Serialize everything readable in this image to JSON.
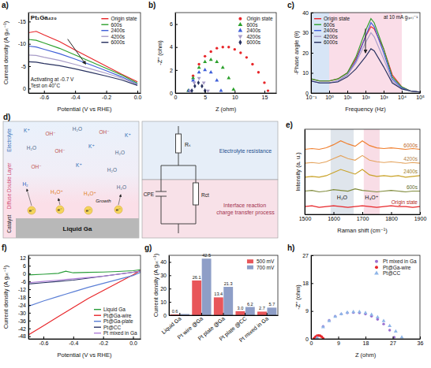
{
  "chart_data": [
    {
      "panel": "a)",
      "type": "line",
      "x_label": "Potential (V vs RHE)",
      "y_label": "Current density (A gₚₜ⁻¹)",
      "annotations": [
        "Pt₁Ga₄₂₀",
        "Activating at -0.7 V",
        "Test on 40°C"
      ],
      "x": [
        -0.7,
        -0.65,
        -0.6,
        -0.5,
        -0.4,
        -0.3,
        -0.2,
        -0.1,
        0
      ],
      "xlim": [
        -0.7,
        0.02
      ],
      "xticks": [
        -0.6,
        -0.4,
        -0.2,
        {
          "value": 0,
          "label": "0.0"
        }
      ],
      "ylim": [
        1,
        -17
      ],
      "yticks": [
        0,
        -5,
        -10,
        -15
      ],
      "legend": "upper right",
      "series": [
        {
          "name": "Origin state",
          "color": "#e8262a",
          "values": [
            -12.5,
            -12.8,
            -12,
            -10.5,
            -8.6,
            -6.8,
            -5,
            -3.2,
            -1.5
          ]
        },
        {
          "name": "600s",
          "color": "#2ca02c",
          "values": [
            -11,
            -10.8,
            -10.2,
            -9,
            -7.5,
            -6,
            -4.5,
            -3,
            -1.2
          ]
        },
        {
          "name": "2400s",
          "color": "#3f5fd8",
          "values": [
            -9.5,
            -9.3,
            -8.8,
            -7.8,
            -6.6,
            -5.3,
            -4,
            -2.6,
            -1
          ]
        },
        {
          "name": "4200s",
          "color": "#a89cc8",
          "values": [
            -7.5,
            -7.4,
            -7,
            -6.3,
            -5.4,
            -4.4,
            -3.4,
            -2.3,
            -0.9
          ]
        },
        {
          "name": "6000s",
          "color": "#27305f",
          "values": [
            -6,
            -5.9,
            -5.6,
            -5.1,
            -4.4,
            -3.6,
            -2.8,
            -1.9,
            -0.7
          ]
        }
      ]
    },
    {
      "panel": "b)",
      "type": "scatter",
      "x_label": "Z (ohm)",
      "y_label": "-Z'' (ohm)",
      "xlim": [
        0,
        17
      ],
      "xticks": [
        0,
        5,
        10,
        15
      ],
      "ylim": [
        0,
        7
      ],
      "yticks": [
        0,
        2,
        4,
        6
      ],
      "legend": "upper right",
      "series": [
        {
          "name": "Origin state",
          "color": "#e8262a",
          "marker": "circle",
          "x": [
            2.2,
            3,
            4,
            5,
            6,
            7,
            8,
            9,
            10,
            11,
            12,
            13,
            14,
            15,
            15.6
          ],
          "values": [
            0.2,
            1.5,
            2.5,
            3.2,
            3.6,
            3.9,
            4.0,
            4.0,
            3.8,
            3.5,
            3.1,
            2.5,
            1.8,
            0.9,
            0.2
          ]
        },
        {
          "name": "600s",
          "color": "#2ca02c",
          "marker": "triangle",
          "x": [
            2.2,
            3,
            4,
            5,
            6,
            7,
            8,
            9,
            9.8
          ],
          "values": [
            0.2,
            1.3,
            2.2,
            2.7,
            2.9,
            2.7,
            2.2,
            1.3,
            0.3
          ]
        },
        {
          "name": "2400s",
          "color": "#3f5fd8",
          "marker": "triangle",
          "x": [
            2.3,
            3,
            4,
            5,
            6,
            7,
            7.7
          ],
          "values": [
            0.2,
            1.1,
            1.8,
            2.0,
            1.8,
            1.1,
            0.2
          ]
        },
        {
          "name": "4200s",
          "color": "#a89cc8",
          "marker": "triangle-down",
          "x": [
            2.5,
            3.2,
            4,
            4.8,
            5.5
          ],
          "values": [
            0.2,
            0.9,
            1.3,
            0.9,
            0.2
          ]
        },
        {
          "name": "6000s",
          "color": "#27305f",
          "marker": "diamond",
          "x": [
            2.8,
            3.3,
            3.9,
            4.5,
            5.0
          ],
          "values": [
            0.2,
            0.6,
            0.9,
            0.6,
            0.2
          ]
        }
      ]
    },
    {
      "panel": "c)",
      "type": "line",
      "log": "x",
      "x_label": "Frequency (Hz)",
      "y_label": "-Phase angle (θ)",
      "annotations": [
        "at 10 mA g₍ₚₜ₎⁻¹"
      ],
      "x": [
        0.1,
        0.3,
        1,
        3,
        10,
        30,
        100,
        200,
        300,
        1000,
        3000,
        10000,
        30000,
        100000
      ],
      "xlim": [
        0.1,
        100000
      ],
      "xticks": [
        {
          "value": 0.1,
          "label": "10⁻¹"
        },
        {
          "value": 1,
          "label": "10⁰"
        },
        {
          "value": 10,
          "label": "10¹"
        },
        {
          "value": 100,
          "label": "10²"
        },
        {
          "value": 1000,
          "label": "10³"
        },
        {
          "value": 10000,
          "label": "10⁴"
        },
        {
          "value": 100000,
          "label": "10⁵"
        }
      ],
      "ylim": [
        0,
        40
      ],
      "yticks": [
        0,
        10,
        20,
        30,
        40
      ],
      "regions": [
        {
          "x0": 0.1,
          "x1": 1,
          "color": "#d7e5f6"
        },
        {
          "x0": 1,
          "x1": 10000,
          "color": "#fadde8"
        }
      ],
      "legend": "upper left",
      "series": [
        {
          "name": "Origin state",
          "color": "#e8262a",
          "values": [
            7,
            6,
            6,
            7,
            10,
            17,
            28,
            33,
            32,
            22,
            9,
            3,
            1,
            0.5
          ]
        },
        {
          "name": "600s",
          "color": "#2ca02c",
          "values": [
            7,
            6,
            6,
            7,
            10,
            18,
            31,
            37,
            35,
            22,
            8,
            3,
            1,
            0.5
          ]
        },
        {
          "name": "2400s",
          "color": "#3f5fd8",
          "values": [
            6,
            5,
            5,
            6,
            9,
            16,
            28,
            35,
            33,
            20,
            7,
            2.5,
            1,
            0.5
          ]
        },
        {
          "name": "4200s",
          "color": "#a89cc8",
          "values": [
            6,
            5,
            5,
            6,
            9,
            15,
            25,
            30,
            28,
            17,
            6,
            2,
            1,
            0.5
          ]
        },
        {
          "name": "6000s",
          "color": "#27305f",
          "values": [
            6,
            5,
            5,
            5.5,
            8,
            12,
            18,
            22,
            21,
            13,
            5,
            2,
            1,
            0.5
          ]
        }
      ]
    },
    {
      "panel": "e)",
      "type": "line",
      "x_label": "Raman shift (cm⁻¹)",
      "y_label": "Intensity (a. u.)",
      "x": [
        1500,
        1525,
        1550,
        1575,
        1600,
        1625,
        1650,
        1675,
        1700,
        1725,
        1750,
        1775,
        1800,
        1825,
        1850,
        1875,
        1900
      ],
      "xlim": [
        1500,
        1900
      ],
      "xticks": [
        1500,
        1600,
        1700,
        1800,
        1900
      ],
      "ylim": [
        0,
        11
      ],
      "tick_labels": "x",
      "regions": [
        {
          "x0": 1590,
          "x1": 1670,
          "color": "#dfe5ec",
          "label": "H₂O"
        },
        {
          "x0": 1705,
          "x1": 1760,
          "color": "#f8dde6",
          "label": "H₃O⁺"
        }
      ],
      "legend": "line-end",
      "series": [
        {
          "name": "Origin state",
          "color": "#e8262a",
          "values": [
            1.0,
            1.1,
            0.9,
            1.0,
            1.1,
            1.0,
            0.9,
            1.0,
            1.1,
            1.0,
            0.9,
            1.0,
            1.1,
            1.0,
            1.0,
            0.9,
            1.0
          ]
        },
        {
          "name": "600s",
          "color": "#7f8a3a",
          "values": [
            3.0,
            3.1,
            2.9,
            3.0,
            3.2,
            3.1,
            3.0,
            3.3,
            3.1,
            3.0,
            2.9,
            3.0,
            3.1,
            3.0,
            2.9,
            3.0,
            3.0
          ]
        },
        {
          "name": "2400s",
          "color": "#c9a227",
          "values": [
            4.8,
            4.9,
            4.8,
            5.0,
            5.4,
            5.8,
            5.5,
            5.2,
            5.8,
            5.1,
            4.9,
            5.0,
            4.9,
            5.0,
            4.8,
            4.9,
            5.0
          ]
        },
        {
          "name": "4200s",
          "color": "#e4a35c",
          "values": [
            6.6,
            6.7,
            6.6,
            6.8,
            7.2,
            7.6,
            7.2,
            7.0,
            7.6,
            7.0,
            6.8,
            6.7,
            6.8,
            6.7,
            6.6,
            6.7,
            6.6
          ]
        },
        {
          "name": "6000s",
          "color": "#f07f2e",
          "values": [
            8.4,
            8.5,
            8.4,
            8.6,
            9.0,
            9.5,
            9.1,
            8.8,
            9.5,
            8.9,
            8.6,
            8.5,
            8.6,
            8.5,
            8.4,
            8.5,
            8.4
          ]
        }
      ]
    },
    {
      "panel": "f)",
      "type": "line",
      "x_label": "Potential (V vs RHE)",
      "y_label": "Current density (A gₚₜ⁻¹)",
      "x": [
        -0.7,
        -0.6,
        -0.5,
        -0.45,
        -0.4,
        -0.3,
        -0.2,
        -0.1,
        0,
        0.05
      ],
      "xlim": [
        -0.7,
        0.05
      ],
      "xticks": [
        -0.6,
        -0.4,
        -0.2,
        {
          "value": 0,
          "label": "0.0"
        }
      ],
      "ylim": [
        -50,
        14
      ],
      "yticks": [
        -48,
        -42,
        -36,
        -30,
        -24,
        -18,
        -12,
        -6,
        0,
        6,
        12
      ],
      "legend": "lower right",
      "series": [
        {
          "name": "Liquid Ga",
          "color": "#2a9d3a",
          "values": [
            -1,
            -0.5,
            0.2,
            1.8,
            0.6,
            0.9,
            1.2,
            1.6,
            2.2,
            3
          ]
        },
        {
          "name": "Pt@Ga-wire",
          "color": "#e8262a",
          "values": [
            -47,
            -40,
            -33,
            -29.5,
            -26,
            -19,
            -13,
            -7,
            -1,
            2.5
          ]
        },
        {
          "name": "Pt@Ga-plate",
          "color": "#5b7fd6",
          "values": [
            -25,
            -21,
            -17.5,
            -15.7,
            -14,
            -10.5,
            -7.5,
            -4.5,
            -1.5,
            1
          ]
        },
        {
          "name": "Pt@CC",
          "color": "#2b3467",
          "values": [
            -8,
            -7,
            -6,
            -5.5,
            -5,
            -3.5,
            -2,
            -0.5,
            1,
            2
          ]
        },
        {
          "name": "Pt mixed in Ga",
          "color": "#b07fd8",
          "values": [
            -7,
            -6,
            -5,
            -4.5,
            -4,
            -3,
            -2,
            -0.5,
            1,
            2
          ]
        }
      ]
    },
    {
      "panel": "g)",
      "type": "bar",
      "y_label": "Current density (A gₚₜ⁻¹)",
      "categories": [
        "Liquid Ga",
        "Pt wire @Ga",
        "Pt plate @Ga",
        "Pt plate @CC",
        "Pt mixed in Ga"
      ],
      "ylim": [
        0,
        45
      ],
      "yticks": [
        0,
        10,
        20,
        30,
        40
      ],
      "data_labels": true,
      "legend": "upper right",
      "series": [
        {
          "name": "500 mV",
          "color": "#e8565a",
          "values": [
            0.6,
            26.1,
            13.4,
            3.0,
            2.7
          ],
          "value_labels": [
            "0.6",
            "26.1",
            "13.4",
            "3.0",
            "2.7"
          ]
        },
        {
          "name": "700 mV",
          "color": "#8e9ec7",
          "values": [
            0.9,
            42.5,
            21.3,
            6.2,
            5.7
          ],
          "value_labels": [
            null,
            "42.5",
            "21.3",
            "6.2",
            "5.7"
          ]
        }
      ]
    },
    {
      "panel": "h)",
      "type": "scatter",
      "x_label": "Z (ohm)",
      "y_label": "-Z'' (ohm)",
      "xlim": [
        0,
        36
      ],
      "xticks": [
        0,
        9,
        18,
        27,
        36
      ],
      "ylim": [
        0,
        27
      ],
      "yticks": [
        0,
        9,
        18,
        27
      ],
      "legend": "upper right",
      "series": [
        {
          "name": "Pt mixed in Ga",
          "color": "#9a6fd0",
          "marker": "circle",
          "x": [
            2,
            4,
            6,
            8,
            10,
            12,
            14,
            16,
            18,
            20,
            22,
            24,
            26,
            27.5
          ],
          "values": [
            0.3,
            4,
            6,
            7.3,
            8,
            8.4,
            8.5,
            8.4,
            8,
            7.3,
            6.3,
            4.8,
            2.8,
            0.5
          ]
        },
        {
          "name": "Pt@Ga-wire",
          "color": "#e8262a",
          "marker": "circle",
          "x": [
            1,
            1.5,
            2,
            2.5,
            3,
            3.5,
            4
          ],
          "values": [
            0.2,
            0.7,
            1,
            1.1,
            1,
            0.7,
            0.2
          ]
        },
        {
          "name": "Pt@CC",
          "color": "#8fb6e8",
          "marker": "triangle",
          "x": [
            2,
            4,
            6,
            8,
            10,
            12,
            14,
            16,
            18,
            20,
            22,
            24,
            26,
            28,
            30
          ],
          "values": [
            0.3,
            3.8,
            5.8,
            7.2,
            8,
            8.5,
            8.7,
            8.7,
            8.4,
            7.8,
            7,
            5.8,
            4.2,
            2.4,
            0.5
          ]
        }
      ]
    }
  ],
  "diagram": {
    "panel": "d)",
    "layers": [
      "Electrolyte",
      "Diffuse Double Layer",
      "Catalyst"
    ],
    "base": "Liquid Ga",
    "species": [
      "K⁺",
      "OH⁻",
      "H₂O",
      "OH⁻",
      "K⁺",
      "H₂O",
      "OH⁻",
      "K⁺",
      "H₂O",
      "OH⁻",
      "K⁺",
      "H₂O",
      "H₂",
      "H₃O⁺",
      "H₃O⁺",
      "H₂O"
    ],
    "electrons": [
      "e⁻",
      "e⁻",
      "e⁻",
      "e⁻"
    ],
    "growth": "Growth",
    "circuit": {
      "rs": "Rₛ",
      "cpe": "CPE",
      "rct": "Rct"
    },
    "notes": [
      "Electrolyte resistance",
      "Interface reaction charge transfer process"
    ]
  }
}
